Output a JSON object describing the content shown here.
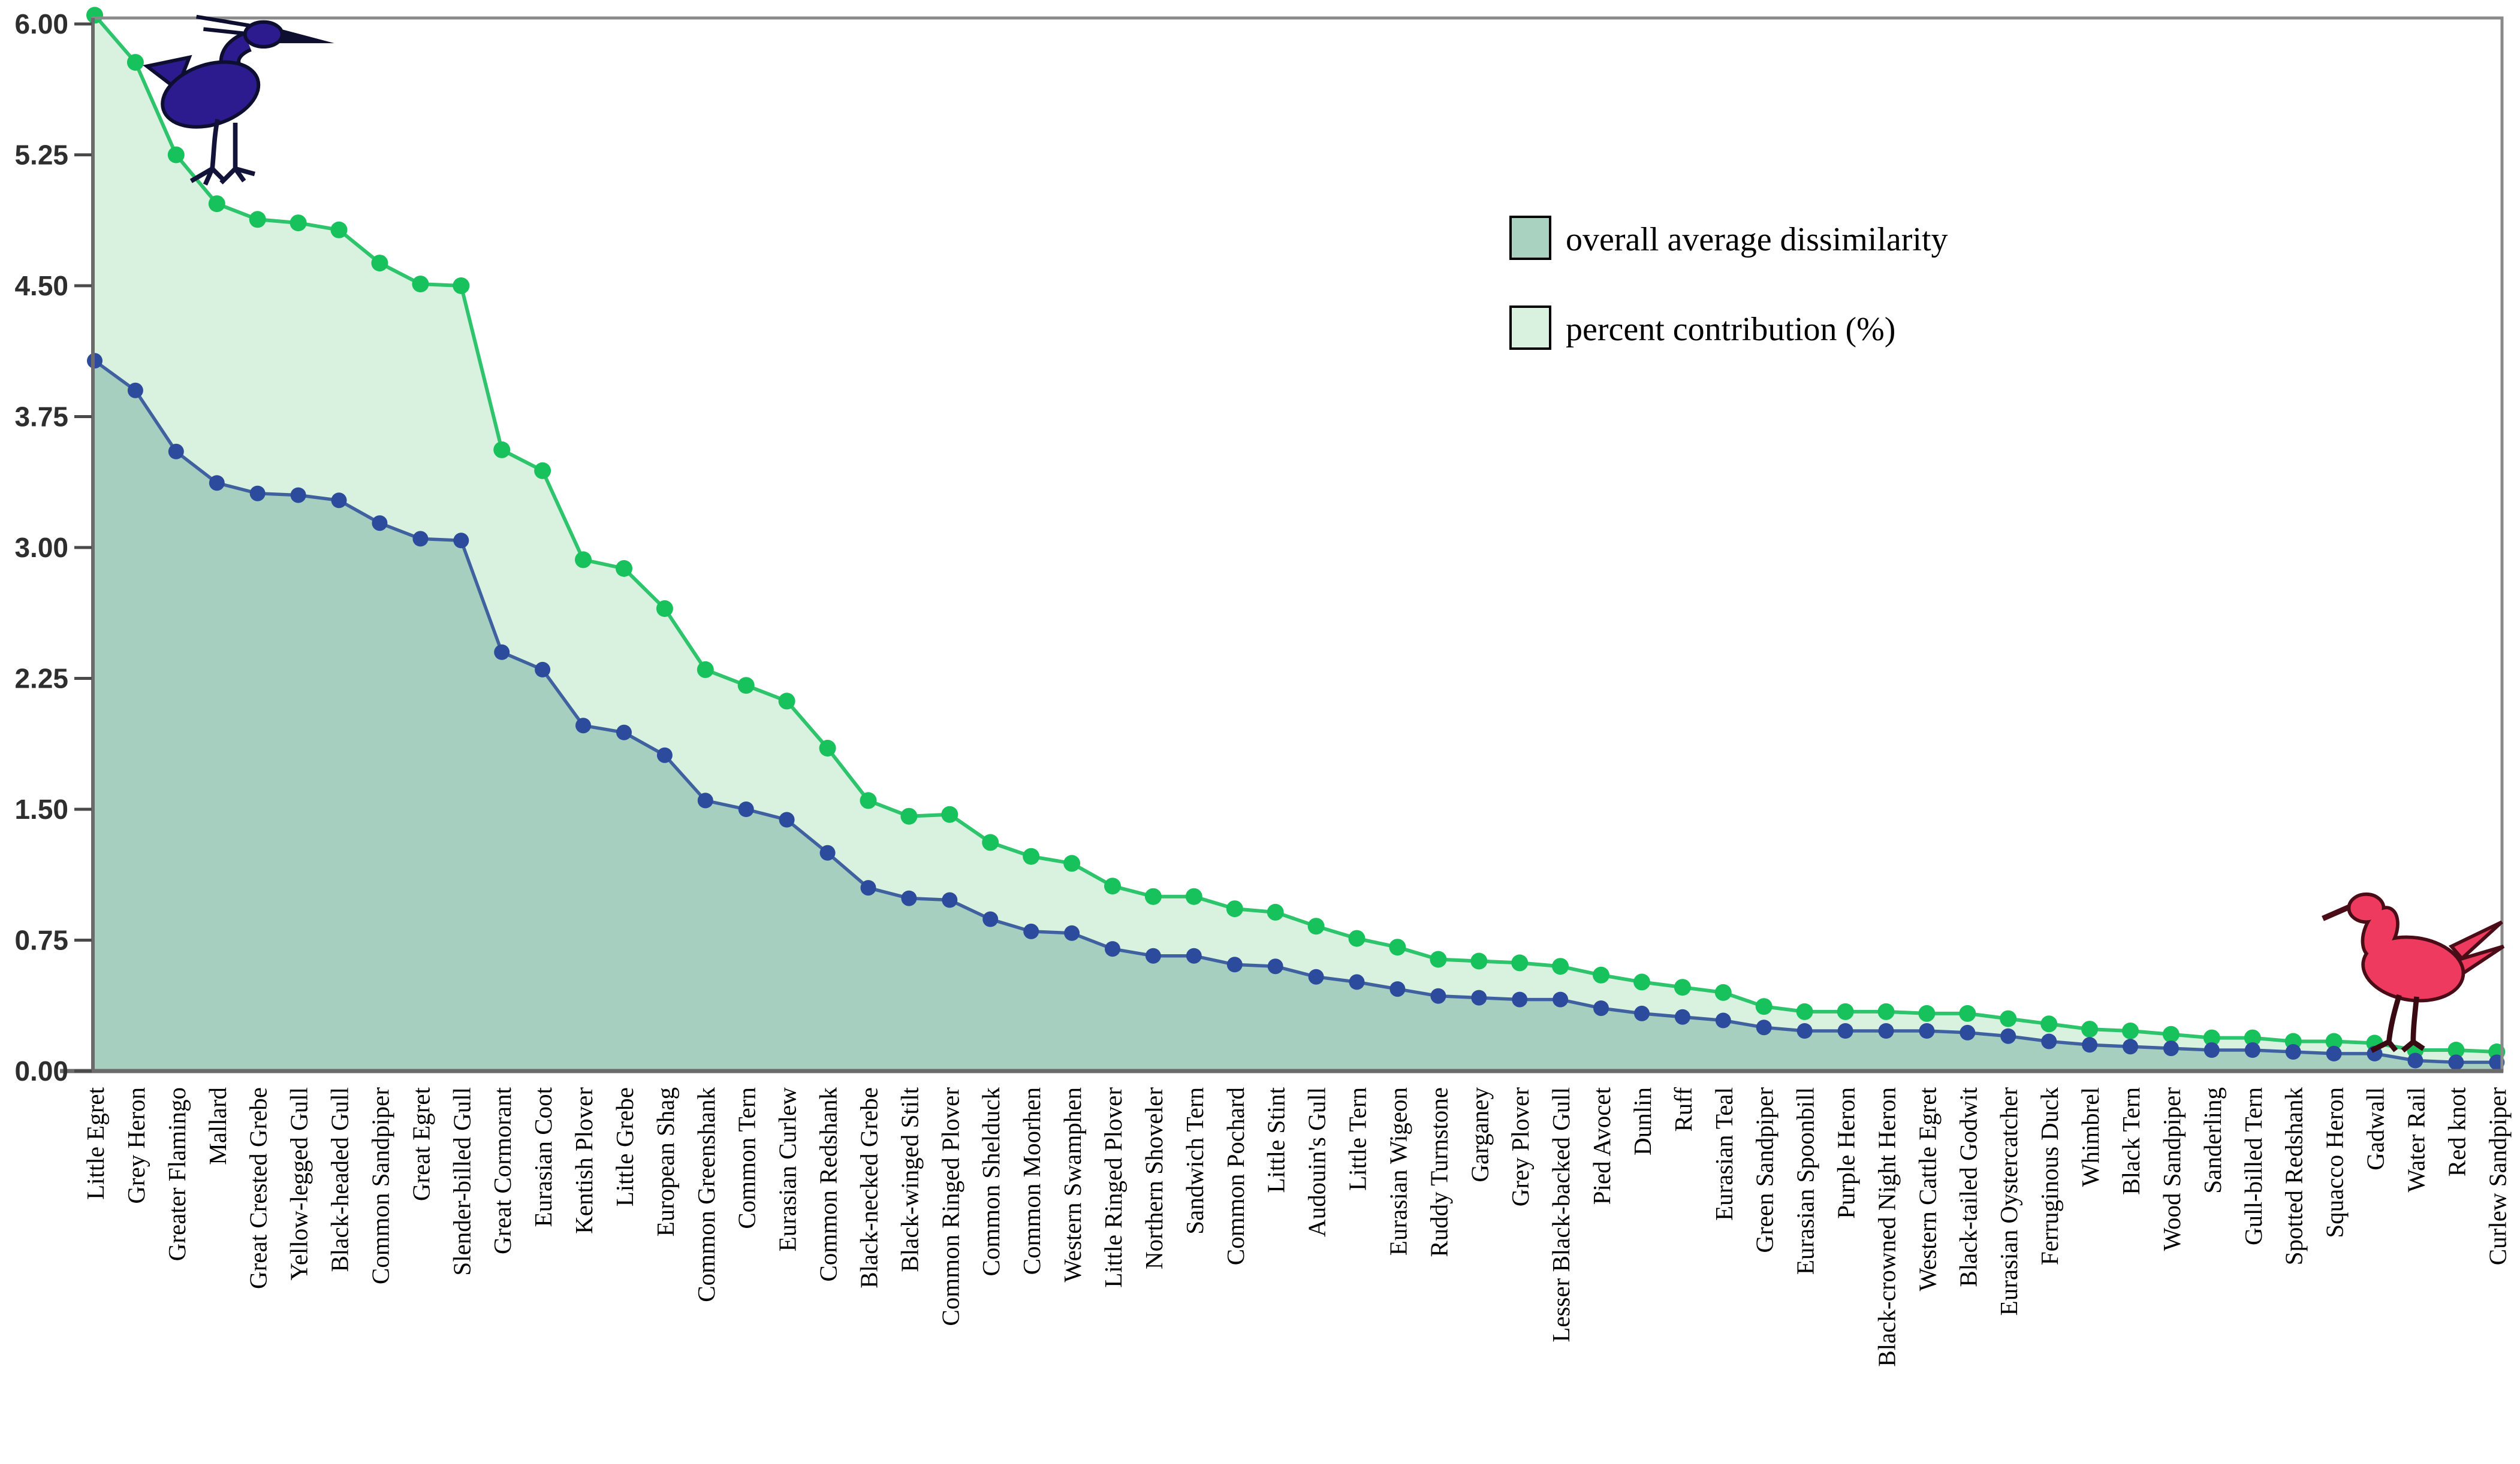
{
  "chart_data": {
    "type": "area",
    "title": "",
    "xlabel": "",
    "ylabel": "",
    "ylim": [
      0,
      6
    ],
    "grid": false,
    "legend_position": "top-right",
    "yticks": [
      0,
      0.75,
      1.5,
      2.25,
      3,
      3.75,
      4.5,
      5.25,
      6
    ],
    "ytick_labels": [
      "0.00",
      "0.75",
      "1.50",
      "2.25",
      "3.00",
      "3.75",
      "4.50",
      "5.25",
      "6.00"
    ],
    "categories": [
      "Little Egret",
      "Grey Heron",
      "Greater Flamingo",
      "Mallard",
      "Great Crested Grebe",
      "Yellow-legged Gull",
      "Black-headed Gull",
      "Common Sandpiper",
      "Great Egret",
      "Slender-billed Gull",
      "Great Cormorant",
      "Eurasian Coot",
      "Kentish Plover",
      "Little Grebe",
      "European Shag",
      "Common Greenshank",
      "Common Tern",
      "Eurasian Curlew",
      "Common Redshank",
      "Black-necked Grebe",
      "Black-winged Stilt",
      "Common Ringed Plover",
      "Common Shelduck",
      "Common Moorhen",
      "Western Swamphen",
      "Little Ringed Plover",
      "Northern Shoveler",
      "Sandwich Tern",
      "Common Pochard",
      "Little Stint",
      "Audouin's Gull",
      "Little Tern",
      "Eurasian Wigeon",
      "Ruddy Turnstone",
      "Garganey",
      "Grey Plover",
      "Lesser Black-backed Gull",
      "Pied Avocet",
      "Dunlin",
      "Ruff",
      "Eurasian Teal",
      "Green Sandpiper",
      "Eurasian Spoonbill",
      "Purple Heron",
      "Black-crowned Night Heron",
      "Western Cattle Egret",
      "Black-tailed Godwit",
      "Eurasian Oystercatcher",
      "Ferruginous Duck",
      "Whimbrel",
      "Black Tern",
      "Wood Sandpiper",
      "Sanderling",
      "Gull-billed Tern",
      "Spotted Redshank",
      "Squacco Heron",
      "Gadwall",
      "Water Rail",
      "Red knot",
      "Curlew Sandpiper"
    ],
    "series": [
      {
        "name": "overall average dissimilarity",
        "line_color": "#40619f",
        "marker_color": "#2c4b9c",
        "fill_color": "#a6cfbf",
        "values": [
          4.07,
          3.9,
          3.55,
          3.37,
          3.31,
          3.3,
          3.27,
          3.14,
          3.05,
          3.04,
          2.4,
          2.3,
          1.98,
          1.94,
          1.81,
          1.55,
          1.5,
          1.44,
          1.25,
          1.05,
          0.99,
          0.98,
          0.87,
          0.8,
          0.79,
          0.7,
          0.66,
          0.66,
          0.61,
          0.6,
          0.54,
          0.51,
          0.47,
          0.43,
          0.42,
          0.41,
          0.41,
          0.36,
          0.33,
          0.31,
          0.29,
          0.25,
          0.23,
          0.23,
          0.23,
          0.23,
          0.22,
          0.2,
          0.17,
          0.15,
          0.14,
          0.13,
          0.12,
          0.12,
          0.11,
          0.1,
          0.1,
          0.06,
          0.05,
          0.05
        ]
      },
      {
        "name": "percent contribution (%)",
        "line_color": "#2ec46c",
        "marker_color": "#17c15b",
        "fill_color": "#d9f2e0",
        "values": [
          6.05,
          5.78,
          5.25,
          4.97,
          4.88,
          4.86,
          4.82,
          4.63,
          4.51,
          4.5,
          3.56,
          3.44,
          2.93,
          2.88,
          2.65,
          2.3,
          2.21,
          2.12,
          1.85,
          1.55,
          1.46,
          1.47,
          1.31,
          1.23,
          1.19,
          1.06,
          1.0,
          1.0,
          0.93,
          0.91,
          0.83,
          0.76,
          0.71,
          0.64,
          0.63,
          0.62,
          0.6,
          0.55,
          0.51,
          0.48,
          0.45,
          0.37,
          0.34,
          0.34,
          0.34,
          0.33,
          0.33,
          0.3,
          0.27,
          0.24,
          0.23,
          0.21,
          0.19,
          0.19,
          0.17,
          0.17,
          0.16,
          0.12,
          0.12,
          0.11
        ]
      }
    ]
  },
  "legend": {
    "items": [
      {
        "label": "overall average dissimilarity",
        "swatch_color": "#a9d2c0"
      },
      {
        "label": "percent contribution (%)",
        "swatch_color": "#d9f2e0"
      }
    ]
  },
  "icons": {
    "heron": {
      "name": "heron-icon",
      "color": "#2b1b8e",
      "outline": "#0e0e30"
    },
    "sandpiper": {
      "name": "sandpiper-icon",
      "color": "#ee3a5e",
      "outline": "#4a0c16"
    }
  },
  "axes": {
    "frame_color": "#8a8a8a",
    "axis_line_color": "#6b6b6b",
    "tick_color": "#4a4a4a",
    "tick_label_color": "#2e2e2e"
  }
}
